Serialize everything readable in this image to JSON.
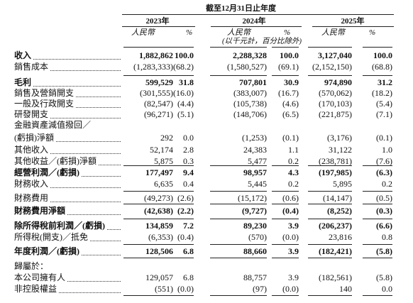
{
  "header": {
    "period": "截至12月31日止年度",
    "years": [
      "2023年",
      "2024年",
      "2025年"
    ],
    "columns": [
      "人民幣",
      "%",
      "人民幣",
      "%",
      "人民幣",
      "%"
    ],
    "note": "(以千元計，百分比除外)"
  },
  "table": {
    "rows": [
      {
        "label": "收入",
        "values": [
          "1,882,862",
          "100.0",
          "2,288,328",
          "100.0",
          "3,127,040",
          "100.0"
        ]
      },
      {
        "label": "銷售成本",
        "values": [
          "(1,283,333)",
          "(68.2)",
          "(1,580,527)",
          "(69.1)",
          "(2,152,150)",
          "(68.8)"
        ]
      },
      {
        "label": "毛利",
        "values": [
          "599,529",
          "31.8",
          "707,801",
          "30.9",
          "974,890",
          "31.2"
        ]
      },
      {
        "label": "銷售及營銷開支",
        "values": [
          "(301,555)",
          "(16.0)",
          "(383,007)",
          "(16.7)",
          "(570,062)",
          "(18.2)"
        ]
      },
      {
        "label": "一般及行政開支",
        "values": [
          "(82,547)",
          "(4.4)",
          "(105,738)",
          "(4.6)",
          "(170,103)",
          "(5.4)"
        ]
      },
      {
        "label": "研發開支",
        "values": [
          "(96,271)",
          "(5.1)",
          "(148,706)",
          "(6.5)",
          "(221,875)",
          "(7.1)"
        ]
      },
      {
        "label": "金融資產減值撥回／"
      },
      {
        "label": "(虧損)淨額",
        "values": [
          "292",
          "0.0",
          "(1,253)",
          "(0.1)",
          "(3,176)",
          "(0.1)"
        ]
      },
      {
        "label": "其他收入",
        "values": [
          "52,174",
          "2.8",
          "24,383",
          "1.1",
          "31,122",
          "1.0"
        ]
      },
      {
        "label": "其他收益／(虧損)淨額",
        "values": [
          "5,875",
          "0.3",
          "5,477",
          "0.2",
          "(238,781)",
          "(7.6)"
        ]
      },
      {
        "label": "經營利潤／(虧損)",
        "values": [
          "177,497",
          "9.4",
          "98,957",
          "4.3",
          "(197,985)",
          "(6.3)"
        ]
      },
      {
        "label": "財務收入",
        "values": [
          "6,635",
          "0.4",
          "5,445",
          "0.2",
          "5,895",
          "0.2"
        ]
      },
      {
        "label": "財務費用",
        "values": [
          "(49,273)",
          "(2.6)",
          "(15,172)",
          "(0.6)",
          "(14,147)",
          "(0.5)"
        ]
      },
      {
        "label": "財務費用淨額",
        "values": [
          "(42,638)",
          "(2.2)",
          "(9,727)",
          "(0.4)",
          "(8,252)",
          "(0.3)"
        ]
      },
      {
        "label": "除所得稅前利潤／(虧損)",
        "values": [
          "134,859",
          "7.2",
          "89,230",
          "3.9",
          "(206,237)",
          "(6.6)"
        ]
      },
      {
        "label": "所得稅(開支)／抵免",
        "values": [
          "(6,353)",
          "(0.4)",
          "(570)",
          "(0.0)",
          "23,816",
          "0.8"
        ]
      },
      {
        "label": "年度利潤／(虧損)",
        "values": [
          "128,506",
          "6.8",
          "88,660",
          "3.9",
          "(182,421)",
          "(5.8)"
        ]
      },
      {
        "label": "歸屬於："
      },
      {
        "label": "本公司擁有人",
        "values": [
          "129,057",
          "6.8",
          "88,757",
          "3.9",
          "(182,561)",
          "(5.8)"
        ]
      },
      {
        "label": "非控股權益",
        "values": [
          "(551)",
          "(0.0)",
          "(97)",
          "(0.0)",
          "140",
          "0.0"
        ]
      }
    ]
  }
}
